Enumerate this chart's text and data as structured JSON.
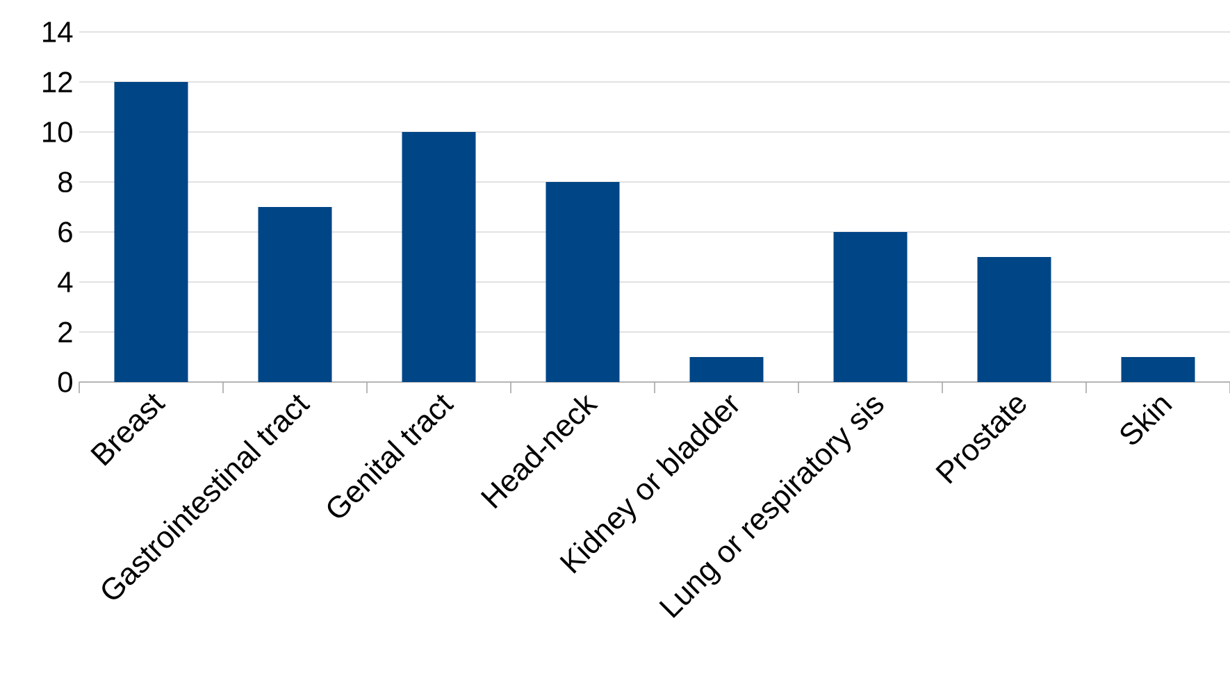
{
  "chart_data": {
    "type": "bar",
    "categories": [
      "Breast",
      "Gastrointestinal tract",
      "Genital tract",
      "Head-neck",
      "Kidney or bladder",
      "Lung or respiratory sis",
      "Prostate",
      "Skin"
    ],
    "values": [
      12,
      7,
      10,
      8,
      1,
      6,
      5,
      1
    ],
    "color": "#004586",
    "ylim": [
      0,
      14
    ],
    "yticks": [
      0,
      2,
      4,
      6,
      8,
      10,
      12,
      14
    ],
    "grid": "y"
  }
}
